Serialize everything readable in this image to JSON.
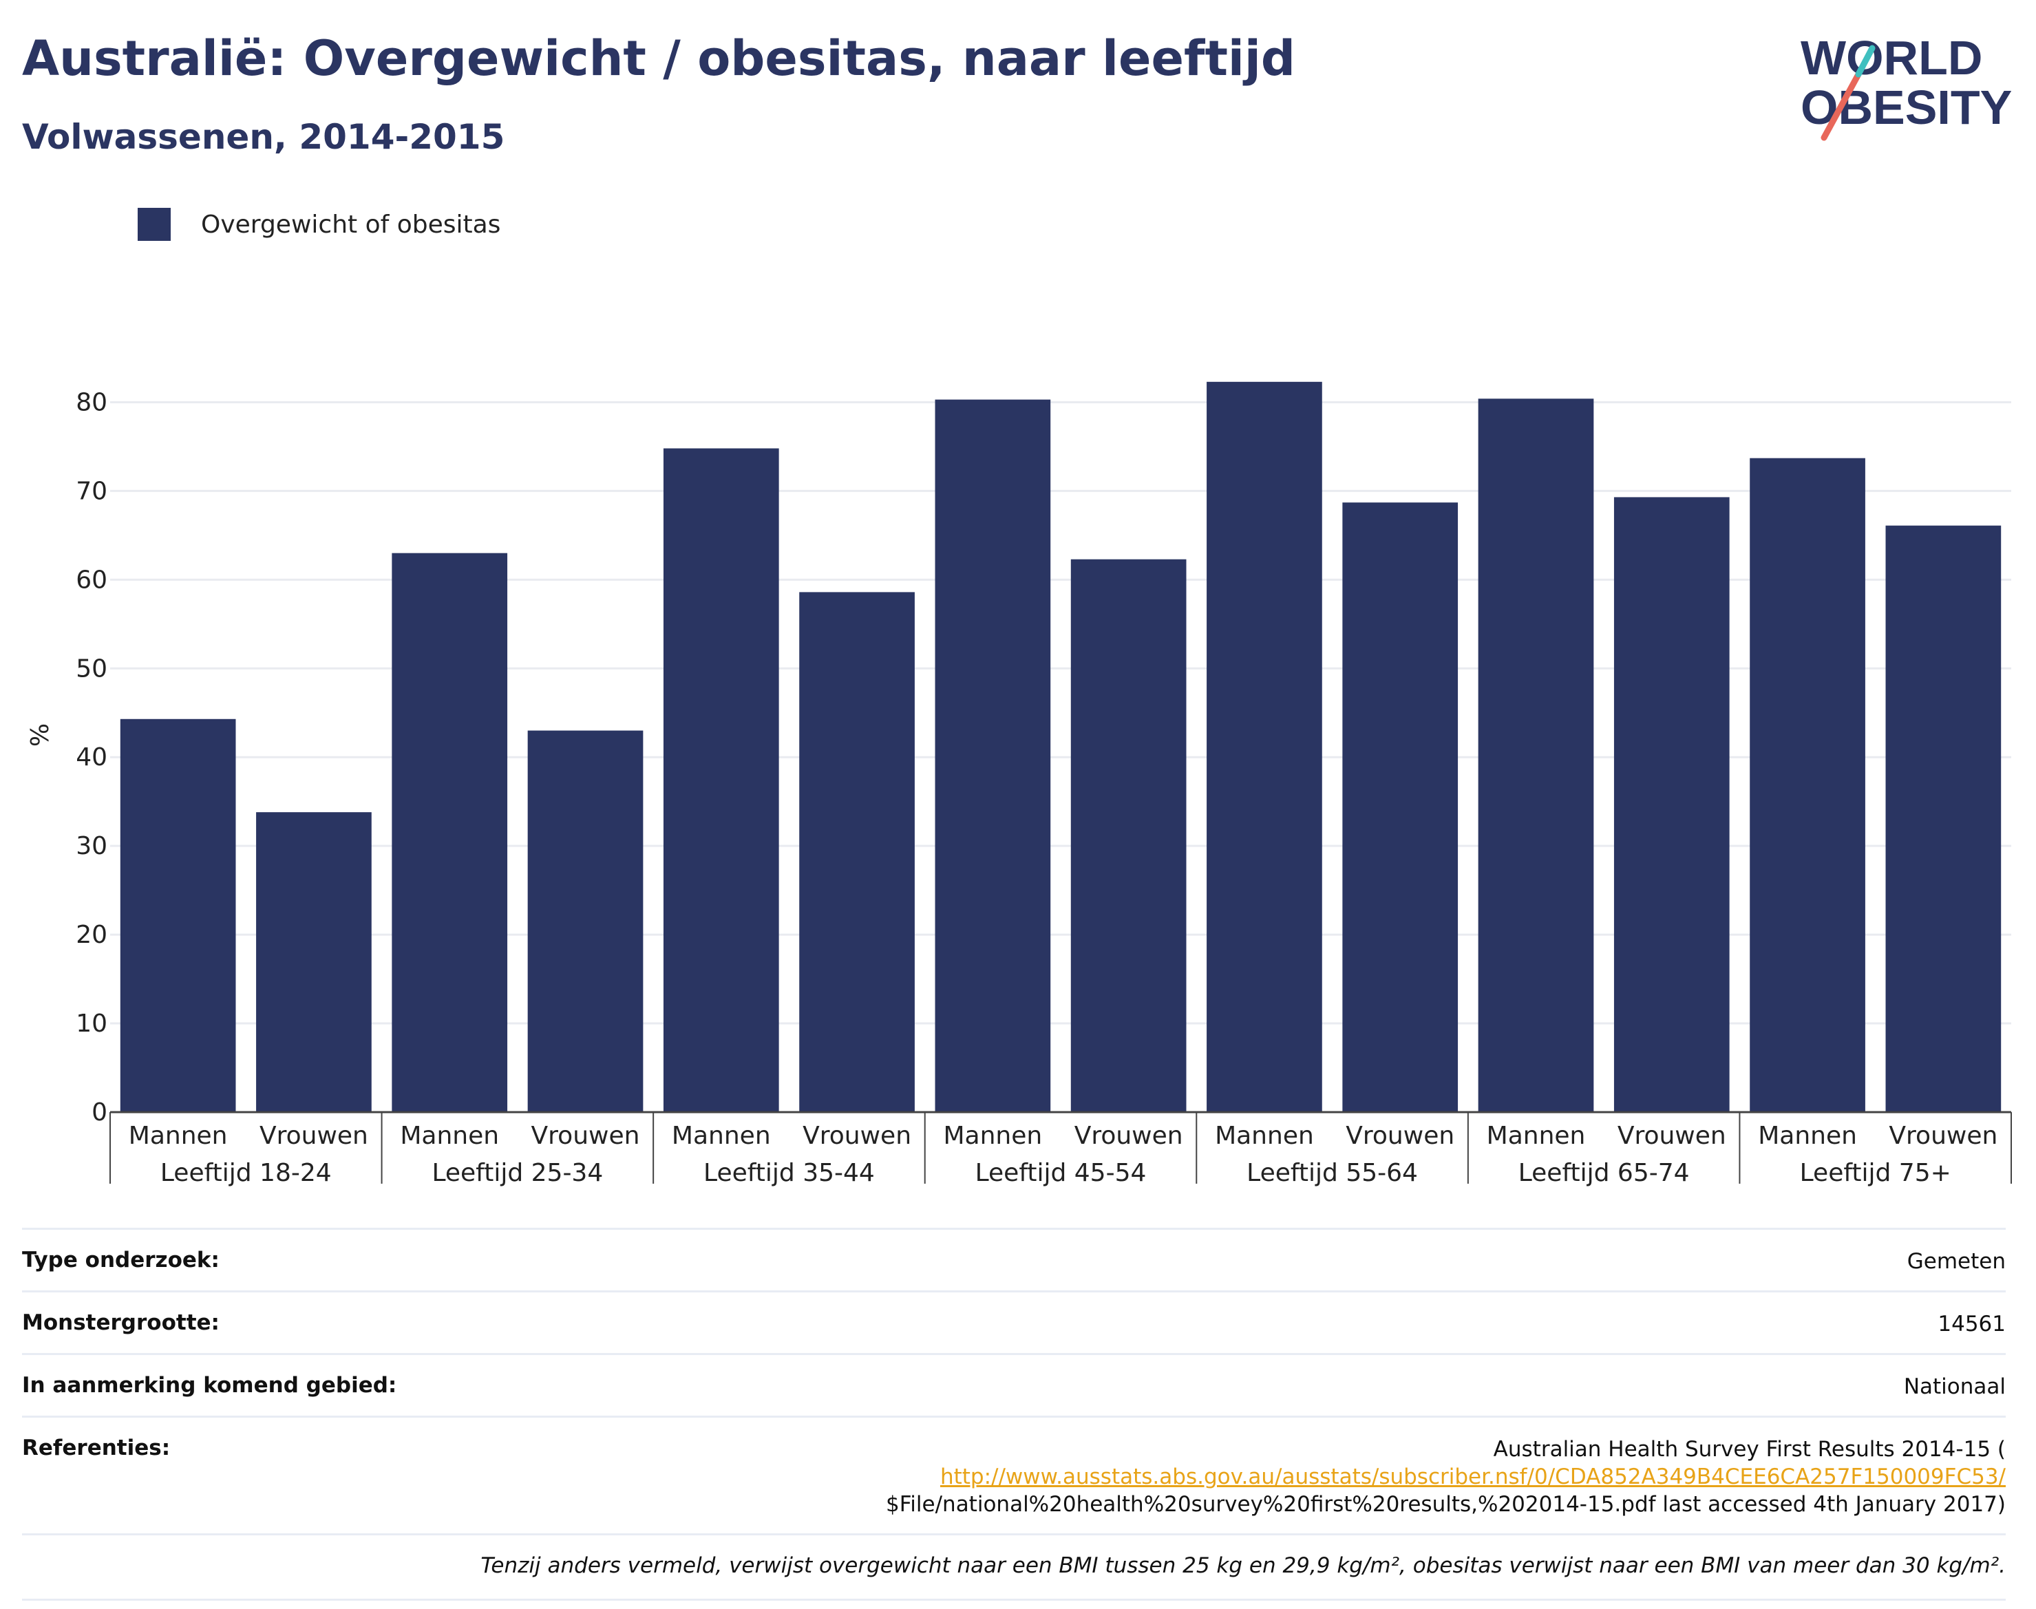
{
  "header": {
    "title": "Australië: Overgewicht / obesitas, naar leeftijd",
    "subtitle": "Volwassenen, 2014-2015"
  },
  "logo": {
    "line1": "WORLD",
    "line2": "OBESITY"
  },
  "legend": {
    "label": "Overgewicht of obesitas"
  },
  "colors": {
    "bar": "#2a3562",
    "title": "#2b3562",
    "link": "#e8a317",
    "logo_accent_red": "#e8675a",
    "logo_accent_teal": "#3fbfbf"
  },
  "chart_data": {
    "type": "bar",
    "ylabel": "%",
    "ylim": [
      0,
      85
    ],
    "yticks": [
      0,
      10,
      20,
      30,
      40,
      50,
      60,
      70,
      80
    ],
    "grid": true,
    "groups": [
      {
        "label": "Leeftijd 18-24",
        "bars": [
          {
            "label": "Mannen",
            "value": 44.3
          },
          {
            "label": "Vrouwen",
            "value": 33.8
          }
        ]
      },
      {
        "label": "Leeftijd 25-34",
        "bars": [
          {
            "label": "Mannen",
            "value": 63.0
          },
          {
            "label": "Vrouwen",
            "value": 43.0
          }
        ]
      },
      {
        "label": "Leeftijd 35-44",
        "bars": [
          {
            "label": "Mannen",
            "value": 74.8
          },
          {
            "label": "Vrouwen",
            "value": 58.6
          }
        ]
      },
      {
        "label": "Leeftijd 45-54",
        "bars": [
          {
            "label": "Mannen",
            "value": 80.3
          },
          {
            "label": "Vrouwen",
            "value": 62.3
          }
        ]
      },
      {
        "label": "Leeftijd 55-64",
        "bars": [
          {
            "label": "Mannen",
            "value": 82.3
          },
          {
            "label": "Vrouwen",
            "value": 68.7
          }
        ]
      },
      {
        "label": "Leeftijd 65-74",
        "bars": [
          {
            "label": "Mannen",
            "value": 80.4
          },
          {
            "label": "Vrouwen",
            "value": 69.3
          }
        ]
      },
      {
        "label": "Leeftijd 75+",
        "bars": [
          {
            "label": "Mannen",
            "value": 73.7
          },
          {
            "label": "Vrouwen",
            "value": 66.1
          }
        ]
      }
    ]
  },
  "info": {
    "rows": [
      {
        "key": "Type onderzoek:",
        "value": "Gemeten"
      },
      {
        "key": "Monstergrootte:",
        "value": "14561"
      },
      {
        "key": "In aanmerking komend gebied:",
        "value": "Nationaal"
      }
    ],
    "references": {
      "key": "Referenties:",
      "line1": "Australian Health Survey First Results 2014-15 (",
      "link": "http://www.ausstats.abs.gov.au/ausstats/subscriber.nsf/0/CDA852A349B4CEE6CA257F150009FC53/",
      "line3": "$File/national%20health%20survey%20first%20results,%202014-15.pdf last accessed 4th January 2017)"
    },
    "note": "Tenzij anders vermeld, verwijst overgewicht naar een BMI tussen 25 kg en 29,9 kg/m², obesitas verwijst naar een BMI van meer dan 30 kg/m²."
  }
}
